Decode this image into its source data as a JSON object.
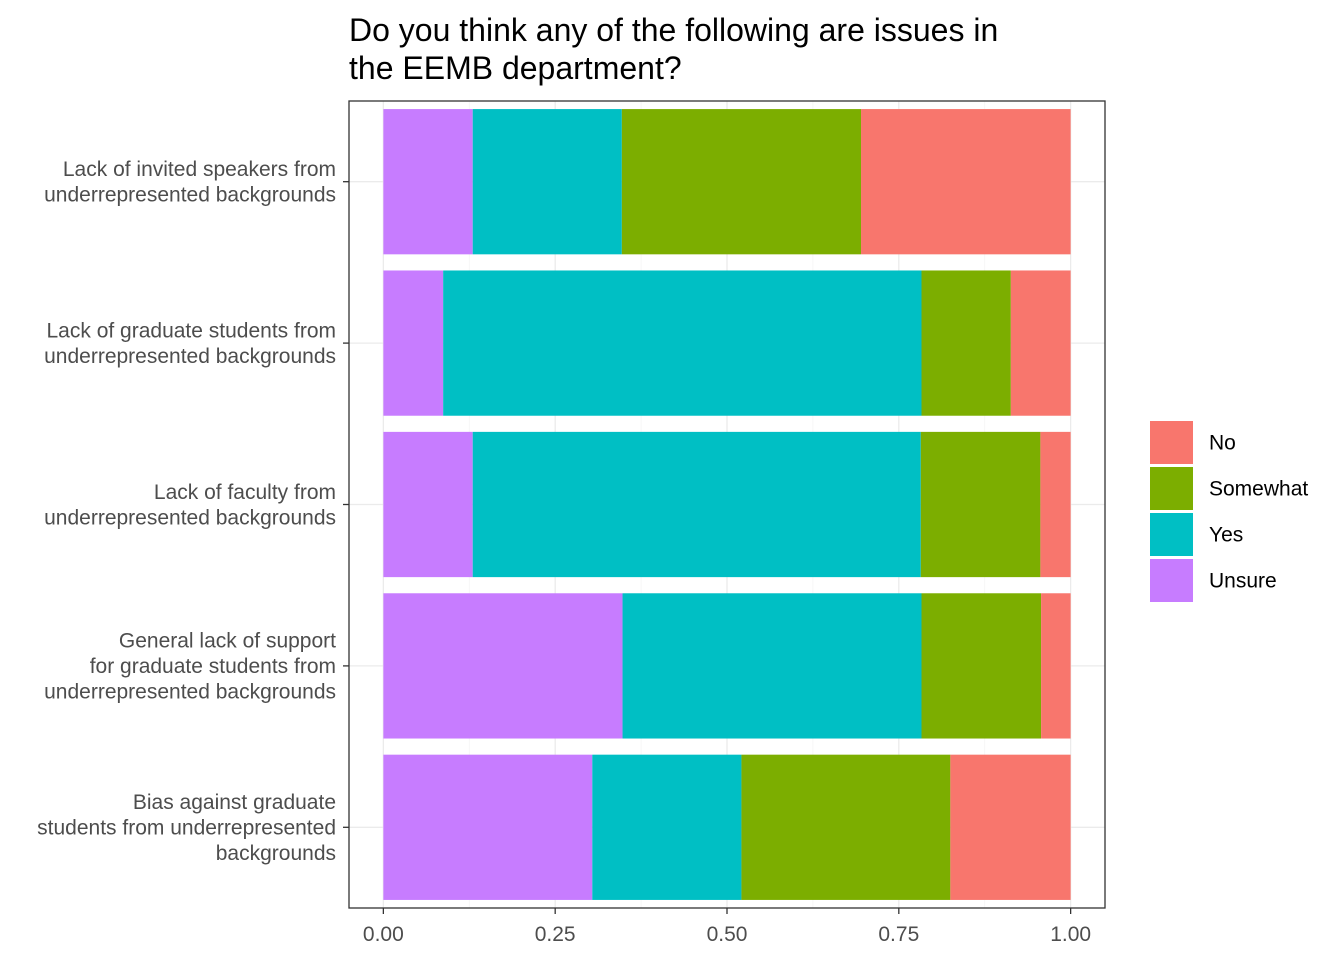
{
  "chart_data": {
    "type": "bar",
    "orientation": "horizontal",
    "stacked": true,
    "title": "Do you think any of the following are issues in the EEMB department?",
    "title_lines": [
      "Do you think any of the following are issues in",
      "the EEMB department?"
    ],
    "categories": [
      {
        "label": "Lack of invited speakers from underrepresented backgrounds",
        "lines": [
          "Lack of invited speakers from",
          "underrepresented backgrounds"
        ]
      },
      {
        "label": "Lack of graduate students from underrepresented backgrounds",
        "lines": [
          "Lack of graduate students from",
          "underrepresented backgrounds"
        ]
      },
      {
        "label": "Lack of faculty from underrepresented backgrounds",
        "lines": [
          "Lack of faculty from",
          "underrepresented backgrounds"
        ]
      },
      {
        "label": "General lack of support for graduate students from underrepresented backgrounds",
        "lines": [
          "General lack of support",
          "for graduate students from",
          "underrepresented backgrounds"
        ]
      },
      {
        "label": "Bias against graduate students from underrepresented backgrounds",
        "lines": [
          "Bias against graduate",
          "students from underrepresented",
          "backgrounds"
        ]
      }
    ],
    "series": [
      {
        "name": "Unsure",
        "color": "#C77CFF",
        "values": [
          0.13,
          0.087,
          0.13,
          0.348,
          0.304
        ]
      },
      {
        "name": "Yes",
        "color": "#00BFC4",
        "values": [
          0.217,
          0.696,
          0.652,
          0.435,
          0.217
        ]
      },
      {
        "name": "Somewhat",
        "color": "#7CAE00",
        "values": [
          0.348,
          0.13,
          0.174,
          0.174,
          0.304
        ]
      },
      {
        "name": "No",
        "color": "#F8766D",
        "values": [
          0.305,
          0.087,
          0.044,
          0.043,
          0.175
        ]
      }
    ],
    "stack_order": [
      "Unsure",
      "Yes",
      "Somewhat",
      "No"
    ],
    "legend_order": [
      "No",
      "Somewhat",
      "Yes",
      "Unsure"
    ],
    "legend_position": "right",
    "xlim": [
      -0.05,
      1.05
    ],
    "xticks": [
      0,
      0.25,
      0.5,
      0.75,
      1.0
    ],
    "xtick_labels": [
      "0.00",
      "0.25",
      "0.50",
      "0.75",
      "1.00"
    ],
    "xlabel": "",
    "ylabel": "",
    "grid": true
  }
}
